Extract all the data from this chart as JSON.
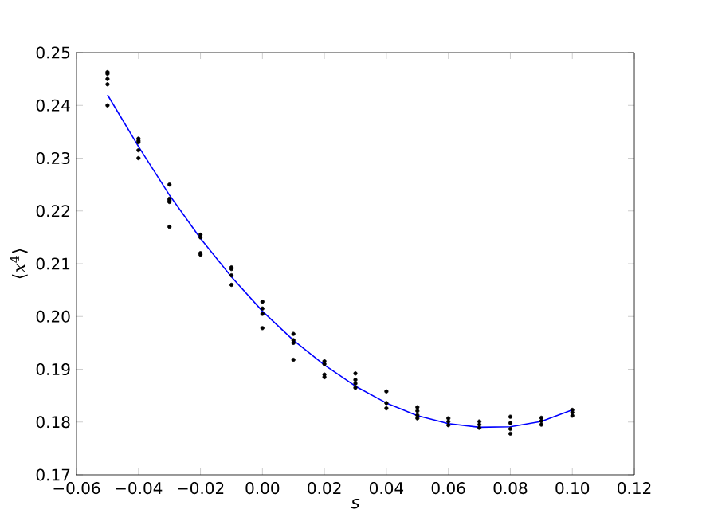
{
  "chart_data": {
    "type": "scatter",
    "xlabel": "*s*",
    "ylabel": "⟨*x*$^{4}$⟩",
    "xlim": [
      -0.06,
      0.12
    ],
    "ylim": [
      0.17,
      0.25
    ],
    "xticks": [
      {
        "value": -0.06,
        "label": "−0.06"
      },
      {
        "value": -0.04,
        "label": "−0.04"
      },
      {
        "value": -0.02,
        "label": "−0.02"
      },
      {
        "value": 0.0,
        "label": "0.00"
      },
      {
        "value": 0.02,
        "label": "0.02"
      },
      {
        "value": 0.04,
        "label": "0.04"
      },
      {
        "value": 0.06,
        "label": "0.06"
      },
      {
        "value": 0.08,
        "label": "0.08"
      },
      {
        "value": 0.1,
        "label": "0.10"
      },
      {
        "value": 0.12,
        "label": "0.12"
      }
    ],
    "yticks": [
      0.17,
      0.18,
      0.19,
      {
        "value": 0.2,
        "label": "0.20"
      },
      0.21,
      0.22,
      0.23,
      0.24,
      0.25
    ],
    "grid": false,
    "marker": "circle",
    "series": [
      {
        "color": "#000000",
        "x": [
          -0.05,
          -0.05,
          -0.05,
          -0.05,
          -0.05,
          -0.04,
          -0.04,
          -0.04,
          -0.04,
          -0.04,
          -0.03,
          -0.03,
          -0.03,
          -0.03,
          -0.03,
          -0.02,
          -0.02,
          -0.02,
          -0.02,
          -0.01,
          -0.01,
          -0.01,
          -0.01,
          0.0,
          0.0,
          0.0,
          0.0,
          0.01,
          0.01,
          0.01,
          0.01,
          0.02,
          0.02,
          0.02,
          0.02,
          0.03,
          0.03,
          0.03,
          0.03,
          0.04,
          0.04,
          0.04,
          0.05,
          0.05,
          0.05,
          0.05,
          0.06,
          0.06,
          0.06,
          0.07,
          0.07,
          0.07,
          0.08,
          0.08,
          0.08,
          0.08,
          0.09,
          0.09,
          0.09,
          0.1,
          0.1,
          0.1
        ],
        "values": [
          0.2463,
          0.246,
          0.245,
          0.244,
          0.24,
          0.2337,
          0.2333,
          0.233,
          0.2315,
          0.23,
          0.225,
          0.2223,
          0.222,
          0.2217,
          0.217,
          0.2155,
          0.215,
          0.212,
          0.2117,
          0.2093,
          0.209,
          0.2078,
          0.206,
          0.2028,
          0.2015,
          0.2005,
          0.1978,
          0.1967,
          0.1955,
          0.195,
          0.1918,
          0.1915,
          0.191,
          0.189,
          0.1885,
          0.1892,
          0.188,
          0.1873,
          0.1865,
          0.1858,
          0.1836,
          0.1826,
          0.1828,
          0.1821,
          0.1813,
          0.1807,
          0.1807,
          0.1801,
          0.1794,
          0.1801,
          0.1795,
          0.1789,
          0.181,
          0.1798,
          0.1787,
          0.1778,
          0.1808,
          0.1802,
          0.1795,
          0.1823,
          0.1818,
          0.1812
        ]
      },
      {
        "type": "line",
        "color": "#0000ff",
        "line_style": "solid",
        "marker": "none",
        "x": [
          -0.05,
          -0.04,
          -0.03,
          -0.02,
          -0.01,
          0.0,
          0.01,
          0.02,
          0.03,
          0.04,
          0.05,
          0.06,
          0.07,
          0.08,
          0.09,
          0.1
        ],
        "values": [
          0.242,
          0.2322,
          0.223,
          0.2148,
          0.2075,
          0.201,
          0.1955,
          0.1908,
          0.1868,
          0.1836,
          0.1812,
          0.1797,
          0.179,
          0.1791,
          0.1801,
          0.1823
        ]
      }
    ]
  }
}
